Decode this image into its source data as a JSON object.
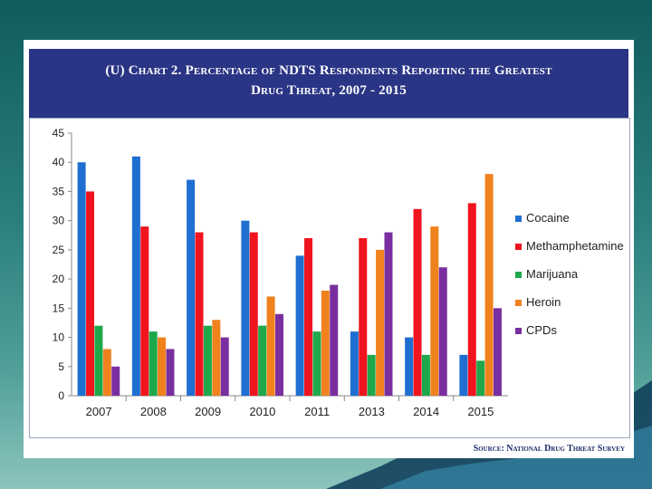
{
  "slide": {
    "title_line1": "(U)  Chart 2.  Percentage of NDTS Respondents Reporting the Greatest",
    "title_line2": "Drug Threat, 2007 - 2015",
    "source": "Source:  National Drug Threat Survey"
  },
  "colors": {
    "Cocaine": "#1f6fd1",
    "Methamphetamine": "#f0141e",
    "Marijuana": "#1fa84a",
    "Heroin": "#f0821e",
    "CPDs": "#7a2fa0"
  },
  "chart_data": {
    "type": "bar",
    "title": "Percentage of NDTS Respondents Reporting the Greatest Drug Threat, 2007 - 2015",
    "xlabel": "",
    "ylabel": "",
    "ylim": [
      0,
      45
    ],
    "yticks": [
      0,
      5,
      10,
      15,
      20,
      25,
      30,
      35,
      40,
      45
    ],
    "grid": false,
    "legend_position": "right",
    "categories": [
      "2007",
      "2008",
      "2009",
      "2010",
      "2011",
      "2013",
      "2014",
      "2015"
    ],
    "series": [
      {
        "name": "Cocaine",
        "values": [
          40,
          41,
          37,
          30,
          24,
          11,
          10,
          7
        ]
      },
      {
        "name": "Methamphetamine",
        "values": [
          35,
          29,
          28,
          28,
          27,
          27,
          32,
          33
        ]
      },
      {
        "name": "Marijuana",
        "values": [
          12,
          11,
          12,
          12,
          11,
          7,
          7,
          6
        ]
      },
      {
        "name": "Heroin",
        "values": [
          8,
          10,
          13,
          17,
          18,
          25,
          29,
          38
        ]
      },
      {
        "name": "CPDs",
        "values": [
          5,
          8,
          10,
          14,
          19,
          28,
          22,
          15
        ]
      }
    ]
  }
}
